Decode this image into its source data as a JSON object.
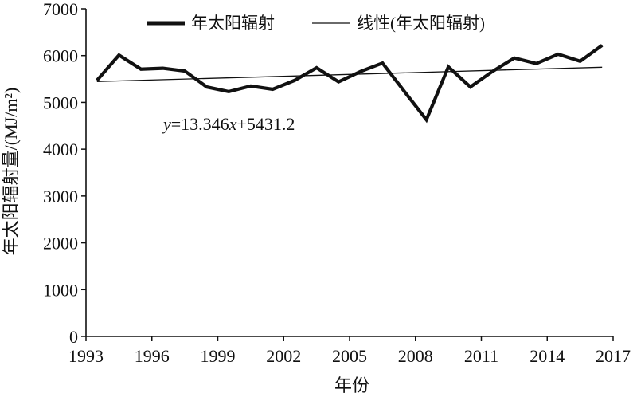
{
  "chart_data": {
    "type": "line",
    "title": "",
    "xlabel": "年份",
    "ylabel": "年太阳辐射量/(MJ/m²)",
    "xlim": [
      1993,
      2017
    ],
    "ylim": [
      0,
      7000
    ],
    "x_ticks": [
      1993,
      1996,
      1999,
      2002,
      2005,
      2008,
      2011,
      2014,
      2017
    ],
    "y_ticks": [
      0,
      1000,
      2000,
      3000,
      4000,
      5000,
      6000,
      7000
    ],
    "grid": false,
    "legend_position": "top",
    "series": [
      {
        "name": "年太阳辐射",
        "style": "thick",
        "color": "#111111",
        "x": [
          1993.5,
          1994.5,
          1995.5,
          1996.5,
          1997.5,
          1998.5,
          1999.5,
          2000.5,
          2001.5,
          2002.5,
          2003.5,
          2004.5,
          2005.5,
          2006.5,
          2007.5,
          2008.5,
          2009.5,
          2010.5,
          2011.5,
          2012.5,
          2013.5,
          2014.5,
          2015.5,
          2016.5
        ],
        "values": [
          5470,
          6010,
          5710,
          5730,
          5670,
          5330,
          5230,
          5350,
          5280,
          5470,
          5740,
          5440,
          5660,
          5840,
          5230,
          4630,
          5760,
          5330,
          5660,
          5950,
          5830,
          6030,
          5880,
          6220
        ]
      },
      {
        "name": "线性(年太阳辐射)",
        "style": "thin",
        "color": "#111111",
        "x": [
          1993.5,
          2016.5
        ],
        "values": [
          5444.5,
          5751.5
        ]
      }
    ],
    "annotations": [
      {
        "parts": [
          {
            "text": "y",
            "italic": true
          },
          {
            "text": "=13.346",
            "italic": false
          },
          {
            "text": "x",
            "italic": true
          },
          {
            "text": "+5431.2",
            "italic": false
          }
        ]
      }
    ]
  }
}
